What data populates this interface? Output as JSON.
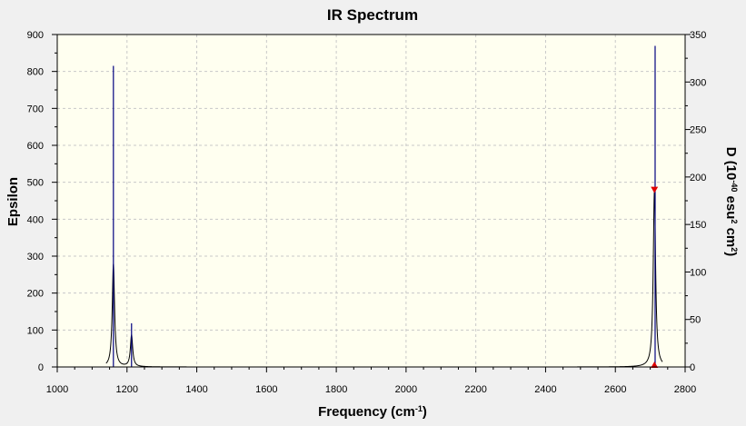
{
  "chart_data": {
    "type": "line",
    "title": "IR Spectrum",
    "xlabel": "Frequency (cm⁻¹)",
    "ylabel": "Epsilon",
    "y2label": "D (10⁻⁴⁰ esu² cm²)",
    "xlim": [
      1000,
      2800
    ],
    "ylim": [
      0,
      900
    ],
    "y2lim": [
      0,
      350
    ],
    "x_ticks": [
      1000,
      1200,
      1400,
      1600,
      1800,
      2000,
      2200,
      2400,
      2600,
      2800
    ],
    "y_ticks": [
      0,
      100,
      200,
      300,
      400,
      500,
      600,
      700,
      800,
      900
    ],
    "y2_ticks": [
      0,
      50,
      100,
      150,
      200,
      250,
      300,
      350
    ],
    "grid": true,
    "series": [
      {
        "values_kind": "epsilon_curve",
        "color": "#000000",
        "peaks": [
          {
            "x": 1161,
            "y": 278,
            "hwhm": 4
          },
          {
            "x": 1213,
            "y": 85,
            "hwhm": 4
          },
          {
            "x": 2712,
            "y": 478,
            "hwhm": 4
          }
        ]
      },
      {
        "values_kind": "stick",
        "color": "#000080",
        "sticks": [
          {
            "x": 1161,
            "d": 317
          },
          {
            "x": 1213,
            "d": 46
          },
          {
            "x": 2714,
            "d": 338
          }
        ]
      }
    ],
    "markers": [
      {
        "x": 2712,
        "y": 478,
        "shape": "triangle-down",
        "color": "#e00000"
      },
      {
        "x": 2712,
        "y": 0,
        "shape": "triangle-up",
        "color": "#e00000"
      }
    ],
    "colors": {
      "plot_background": "#fffff0",
      "frame_background": "#f0f0f0",
      "grid": "#c8c8c8"
    }
  }
}
